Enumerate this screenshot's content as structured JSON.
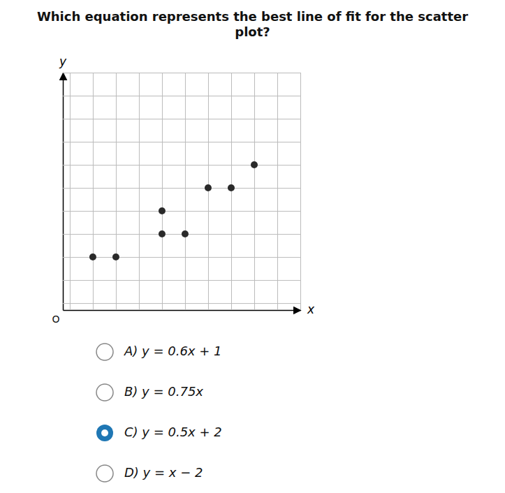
{
  "chart_data": {
    "type": "scatter",
    "title": "Which equation represents the best line of fit for the scatter plot?",
    "x": [
      1,
      2,
      4,
      4,
      5,
      6,
      7,
      8
    ],
    "values": [
      2,
      2,
      3,
      4,
      3,
      5,
      5,
      6
    ],
    "color": "#2a2a2a",
    "x_label": "x",
    "y_label": "y",
    "xlim": [
      -0.3,
      10
    ],
    "ylim": [
      -0.3,
      10
    ],
    "xticks": [
      0,
      1,
      2,
      3,
      4,
      5,
      6,
      7,
      8,
      9,
      10
    ],
    "yticks": [
      0,
      1,
      2,
      3,
      4,
      5,
      6,
      7,
      8,
      9,
      10
    ],
    "grid": true,
    "tick_labels": false,
    "annotations": [
      {
        "text": "O"
      },
      {
        "text": "A) y = 0.6x + 1",
        "selected": false
      },
      {
        "text": "B) y = 0.75x",
        "selected": false
      },
      {
        "text": "C) y = 0.5x + 2",
        "selected": true
      },
      {
        "text": "D) y = x − 2",
        "selected": false
      }
    ]
  }
}
